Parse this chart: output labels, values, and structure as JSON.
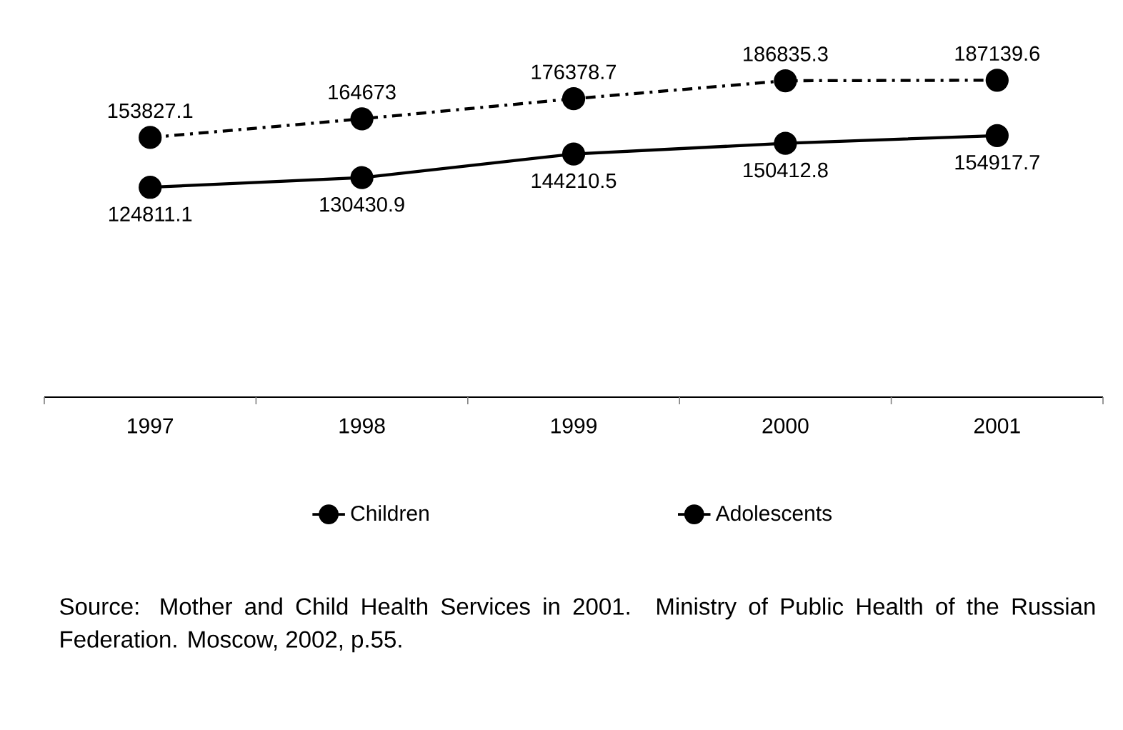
{
  "chart_data": {
    "type": "line",
    "categories": [
      "1997",
      "1998",
      "1999",
      "2000",
      "2001"
    ],
    "series": [
      {
        "name": "Children",
        "color": "#000000",
        "line_style": "dashdot",
        "values": [
          153827.1,
          164673,
          176378.7,
          186835.3,
          187139.6
        ]
      },
      {
        "name": "Adolescents",
        "color": "#000000",
        "line_style": "solid",
        "values": [
          124811.1,
          130430.9,
          144210.5,
          150412.8,
          154917.7
        ]
      }
    ],
    "marker": "circle",
    "data_labels": true,
    "grid": false,
    "legend": "bottom",
    "tick_labels": "x",
    "annotations": [
      "Source: Mother and Child Health Services in 2001. Ministry of Public Health of the Russian Federation. Moscow, 2002, p.55."
    ]
  }
}
